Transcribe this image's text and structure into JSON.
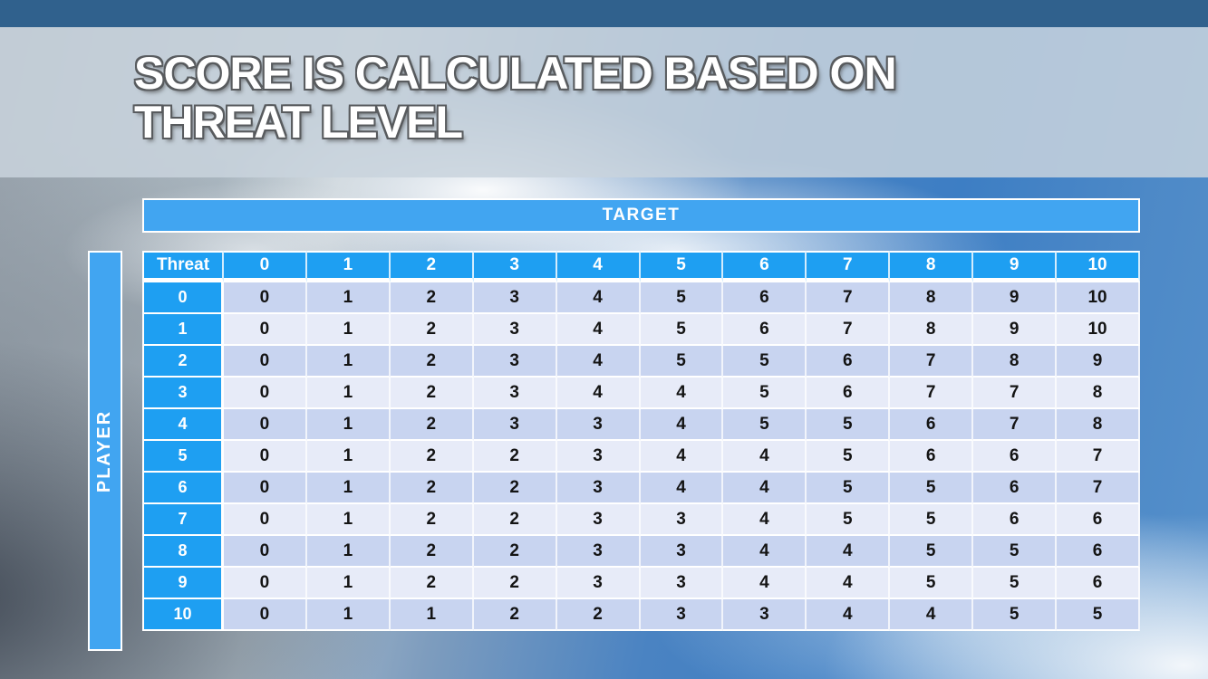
{
  "slide": {
    "title_line1": "SCORE IS CALCULATED BASED ON",
    "title_line2": "THREAT LEVEL"
  },
  "axes": {
    "target_label": "TARGET",
    "player_label": "PLAYER"
  },
  "table": {
    "corner_label": "Threat",
    "col_headers": [
      "0",
      "1",
      "2",
      "3",
      "4",
      "5",
      "6",
      "7",
      "8",
      "9",
      "10"
    ],
    "rows": [
      {
        "threat": "0",
        "values": [
          "0",
          "1",
          "2",
          "3",
          "4",
          "5",
          "6",
          "7",
          "8",
          "9",
          "10"
        ]
      },
      {
        "threat": "1",
        "values": [
          "0",
          "1",
          "2",
          "3",
          "4",
          "5",
          "6",
          "7",
          "8",
          "9",
          "10"
        ]
      },
      {
        "threat": "2",
        "values": [
          "0",
          "1",
          "2",
          "3",
          "4",
          "5",
          "5",
          "6",
          "7",
          "8",
          "9"
        ]
      },
      {
        "threat": "3",
        "values": [
          "0",
          "1",
          "2",
          "3",
          "4",
          "4",
          "5",
          "6",
          "7",
          "7",
          "8"
        ]
      },
      {
        "threat": "4",
        "values": [
          "0",
          "1",
          "2",
          "3",
          "3",
          "4",
          "5",
          "5",
          "6",
          "7",
          "8"
        ]
      },
      {
        "threat": "5",
        "values": [
          "0",
          "1",
          "2",
          "2",
          "3",
          "4",
          "4",
          "5",
          "6",
          "6",
          "7"
        ]
      },
      {
        "threat": "6",
        "values": [
          "0",
          "1",
          "2",
          "2",
          "3",
          "4",
          "4",
          "5",
          "5",
          "6",
          "7"
        ]
      },
      {
        "threat": "7",
        "values": [
          "0",
          "1",
          "2",
          "2",
          "3",
          "3",
          "4",
          "5",
          "5",
          "6",
          "6"
        ]
      },
      {
        "threat": "8",
        "values": [
          "0",
          "1",
          "2",
          "2",
          "3",
          "3",
          "4",
          "4",
          "5",
          "5",
          "6"
        ]
      },
      {
        "threat": "9",
        "values": [
          "0",
          "1",
          "2",
          "2",
          "3",
          "3",
          "4",
          "4",
          "5",
          "5",
          "6"
        ]
      },
      {
        "threat": "10",
        "values": [
          "0",
          "1",
          "1",
          "2",
          "2",
          "3",
          "3",
          "4",
          "4",
          "5",
          "5"
        ]
      }
    ]
  },
  "colors": {
    "header_blue": "#1e9ff2",
    "bar_blue": "#41a5f1",
    "row_even": "#c8d4f0",
    "row_odd": "#e7ebf8",
    "top_strip": "#30618d",
    "title_band": "#c9d4dd",
    "body_text": "#141414",
    "title_text": "#ffffff"
  }
}
